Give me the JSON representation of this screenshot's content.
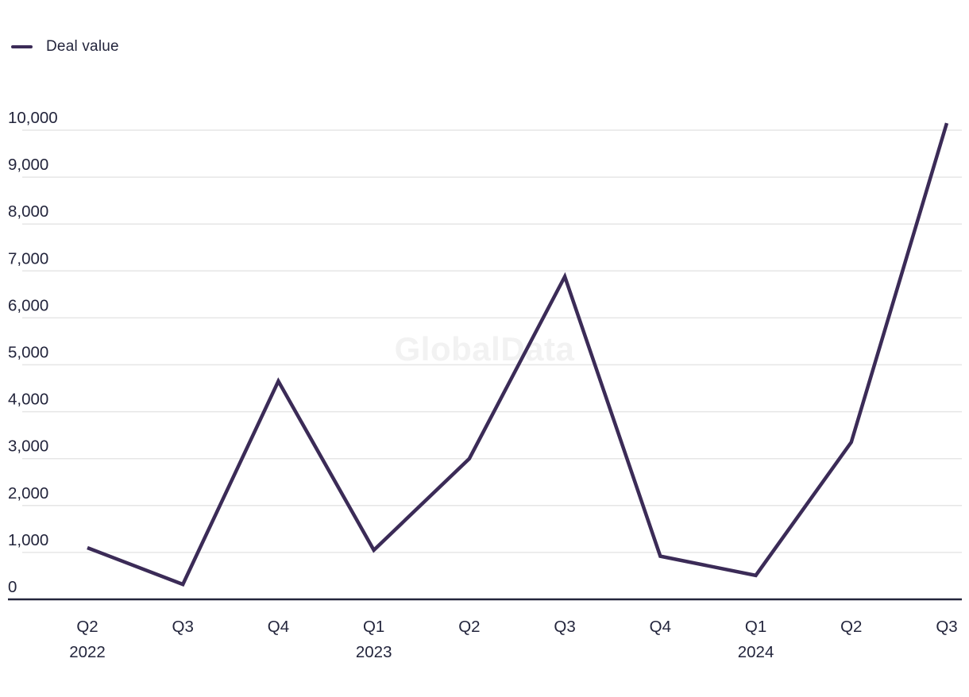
{
  "legend": {
    "label": "Deal value"
  },
  "watermark": "GlobalData",
  "colors": {
    "line": "#3b2b57",
    "text": "#23253c",
    "grid": "#e6e6e6",
    "axis": "#23253c",
    "watermark": "#f2f2f2"
  },
  "chart_data": {
    "type": "line",
    "title": "",
    "xlabel": "",
    "ylabel": "",
    "categories": [
      "Q2",
      "Q3",
      "Q4",
      "Q1",
      "Q2",
      "Q3",
      "Q4",
      "Q1",
      "Q2",
      "Q3"
    ],
    "year_labels": [
      {
        "index": 0,
        "year": "2022"
      },
      {
        "index": 3,
        "year": "2023"
      },
      {
        "index": 7,
        "year": "2024"
      }
    ],
    "series": [
      {
        "name": "Deal value",
        "values": [
          1100,
          320,
          4650,
          1050,
          3000,
          6880,
          920,
          510,
          3350,
          10150
        ]
      }
    ],
    "ylim": [
      0,
      10000
    ],
    "ytick_step": 1000,
    "ytick_labels": [
      "0",
      "1,000",
      "2,000",
      "3,000",
      "4,000",
      "5,000",
      "6,000",
      "7,000",
      "8,000",
      "9,000",
      "10,000"
    ],
    "grid": "horizontal-only",
    "legend_position": "top-left"
  }
}
